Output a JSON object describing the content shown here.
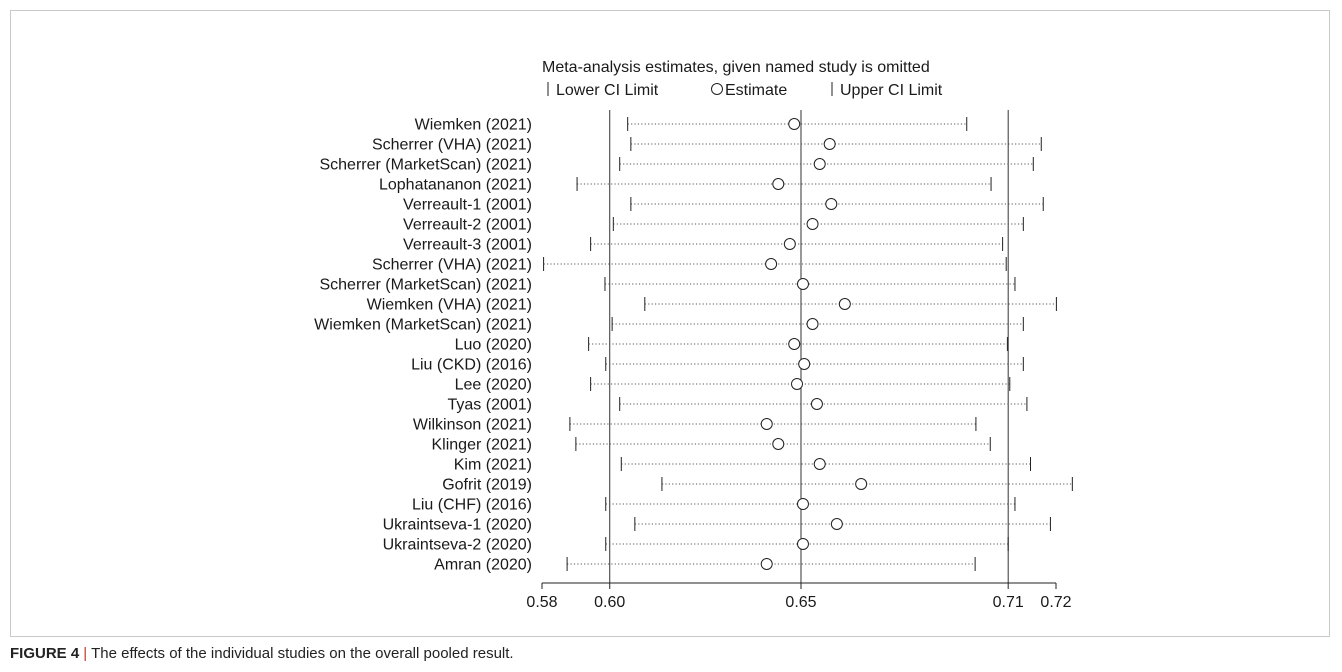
{
  "chart_data": {
    "type": "scatter",
    "title": "Meta-analysis estimates, given named study is omitted",
    "legend": {
      "lower_label": "Lower CI Limit",
      "estimate_label": "Estimate",
      "upper_label": "Upper CI Limit"
    },
    "x_ticks": [
      "0.58",
      "0.60",
      "0.65",
      "0.71",
      "0.72"
    ],
    "x_tick_values": [
      0.583,
      0.6,
      0.648,
      0.7,
      0.712
    ],
    "reference_lines": [
      0.6,
      0.648,
      0.7
    ],
    "xlim": [
      0.583,
      0.712
    ],
    "studies": [
      {
        "label": "Wiemken (2021)",
        "lower": 0.6045,
        "estimate": 0.6463,
        "upper": 0.6896
      },
      {
        "label": "Scherrer (VHA) (2021)",
        "lower": 0.6053,
        "estimate": 0.6552,
        "upper": 0.7083
      },
      {
        "label": "Scherrer (MarketScan) (2021)",
        "lower": 0.6025,
        "estimate": 0.6527,
        "upper": 0.7063
      },
      {
        "label": "Lophatananon (2021)",
        "lower": 0.5918,
        "estimate": 0.6423,
        "upper": 0.6957
      },
      {
        "label": "Verreault-1 (2001)",
        "lower": 0.6053,
        "estimate": 0.6556,
        "upper": 0.7088
      },
      {
        "label": "Verreault-2 (2001)",
        "lower": 0.6009,
        "estimate": 0.6509,
        "upper": 0.7038
      },
      {
        "label": "Verreault-3 (2001)",
        "lower": 0.5952,
        "estimate": 0.6452,
        "upper": 0.6986
      },
      {
        "label": "Scherrer (VHA) (2021)",
        "lower": 0.5834,
        "estimate": 0.6405,
        "upper": 0.6995
      },
      {
        "label": "Scherrer (MarketScan) (2021)",
        "lower": 0.5988,
        "estimate": 0.6485,
        "upper": 0.7017
      },
      {
        "label": "Wiemken (VHA) (2021)",
        "lower": 0.6088,
        "estimate": 0.659,
        "upper": 0.7121
      },
      {
        "label": "Wiemken (MarketScan) (2021)",
        "lower": 0.6006,
        "estimate": 0.6509,
        "upper": 0.7038
      },
      {
        "label": "Luo (2020)",
        "lower": 0.5947,
        "estimate": 0.6463,
        "upper": 0.6998
      },
      {
        "label": "Liu (CKD) (2016)",
        "lower": 0.599,
        "estimate": 0.6488,
        "upper": 0.7038
      },
      {
        "label": "Lee (2020)",
        "lower": 0.5952,
        "estimate": 0.647,
        "upper": 0.7004
      },
      {
        "label": "Tyas (2001)",
        "lower": 0.6025,
        "estimate": 0.652,
        "upper": 0.7047
      },
      {
        "label": "Wilkinson (2021)",
        "lower": 0.59,
        "estimate": 0.6394,
        "upper": 0.6919
      },
      {
        "label": "Klinger (2021)",
        "lower": 0.5915,
        "estimate": 0.6423,
        "upper": 0.6955
      },
      {
        "label": "Kim (2021)",
        "lower": 0.6029,
        "estimate": 0.6527,
        "upper": 0.7056
      },
      {
        "label": "Gofrit (2019)",
        "lower": 0.6131,
        "estimate": 0.6631,
        "upper": 0.7161
      },
      {
        "label": "Liu (CHF) (2016)",
        "lower": 0.599,
        "estimate": 0.6485,
        "upper": 0.7017
      },
      {
        "label": "Ukraintseva-1 (2020)",
        "lower": 0.6063,
        "estimate": 0.657,
        "upper": 0.7106
      },
      {
        "label": "Ukraintseva-2 (2020)",
        "lower": 0.599,
        "estimate": 0.6485,
        "upper": 0.7
      },
      {
        "label": "Amran (2020)",
        "lower": 0.5893,
        "estimate": 0.6394,
        "upper": 0.6917
      }
    ],
    "grid": false
  },
  "caption": {
    "figure_label": "FIGURE 4",
    "separator": "|",
    "text": "The effects of the individual studies on the overall pooled result."
  }
}
